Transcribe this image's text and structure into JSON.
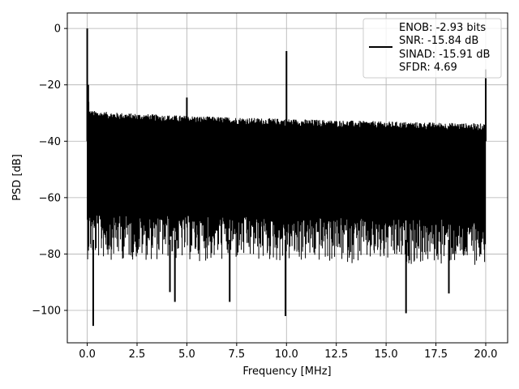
{
  "chart_data": {
    "type": "line",
    "xlabel": "Frequency [MHz]",
    "ylabel": "PSD [dB]",
    "xlim": [
      -1,
      21.1
    ],
    "ylim": [
      -111.5,
      5.5
    ],
    "grid": true,
    "x_ticks": [
      0.0,
      2.5,
      5.0,
      7.5,
      10.0,
      12.5,
      15.0,
      17.5,
      20.0
    ],
    "x_tick_labels": [
      "0.0",
      "2.5",
      "5.0",
      "7.5",
      "10.0",
      "12.5",
      "15.0",
      "17.5",
      "20.0"
    ],
    "y_ticks": [
      0,
      -20,
      -40,
      -60,
      -80,
      -100
    ],
    "y_tick_labels": [
      "0",
      "−20",
      "−40",
      "−60",
      "−80",
      "−100"
    ],
    "legend_position": "top-right",
    "legend_lines": [
      "ENOB: -2.93 bits",
      "SNR: -15.84 dB",
      "SINAD: -15.91 dB",
      "SFDR: 4.69"
    ],
    "series_color": "#000000",
    "noise_floor": {
      "x_start": 0.0,
      "x_end": 20.0,
      "upper_db": [
        -30,
        -35
      ],
      "lower_db": [
        -66,
        -68
      ],
      "typical_min_db": -82
    },
    "peaks": [
      {
        "x": 0.0,
        "y": 0.0
      },
      {
        "x": 0.05,
        "y": -20.0
      },
      {
        "x": 5.0,
        "y": -24.5
      },
      {
        "x": 10.0,
        "y": -8.0
      },
      {
        "x": 20.0,
        "y": -14.5
      }
    ],
    "dips": [
      {
        "x": 0.3,
        "y": -105.5
      },
      {
        "x": 4.4,
        "y": -97.0
      },
      {
        "x": 7.15,
        "y": -97.0
      },
      {
        "x": 9.95,
        "y": -102.0
      },
      {
        "x": 16.0,
        "y": -101.0
      },
      {
        "x": 4.15,
        "y": -93.5
      },
      {
        "x": 18.15,
        "y": -94.0
      }
    ]
  }
}
